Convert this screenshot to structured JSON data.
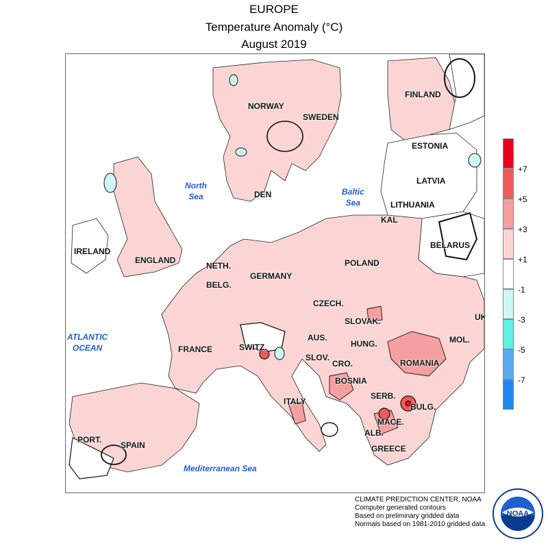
{
  "title": {
    "line1": "EUROPE",
    "line2": "Temperature Anomaly (°C)",
    "line3": "August 2019"
  },
  "countries": {
    "finland": "FINLAND",
    "norway": "NORWAY",
    "sweden": "SWEDEN",
    "estonia": "ESTONIA",
    "latvia": "LATVIA",
    "lithuania": "LITHUANIA",
    "kal": "KAL",
    "belarus": "BELARUS",
    "den": "DEN",
    "ireland": "IRELAND",
    "england": "ENGLAND",
    "neth": "NETH.",
    "belg": "BELG.",
    "germany": "GERMANY",
    "poland": "POLAND",
    "czech": "CZECH.",
    "slovak": "SLOVAK.",
    "aus": "AUS.",
    "switz": "SWITZ.",
    "france": "FRANCE",
    "hung": "HUNG.",
    "mol": "MOL.",
    "romania": "ROMANIA",
    "slov": "SLOV.",
    "cro": "CRO.",
    "bosnia": "BOSNIA",
    "serb": "SERB.",
    "bulg": "BULG.",
    "mace": "MACE.",
    "alb": "ALB.",
    "greece": "GREECE",
    "italy": "ITALY",
    "port": "PORT.",
    "spain": "SPAIN",
    "uk_edge": "UK"
  },
  "seas": {
    "north_1": "North",
    "north_2": "Sea",
    "baltic_1": "Baltic",
    "baltic_2": "Sea",
    "atlantic_1": "ATLANTIC",
    "atlantic_2": "OCEAN",
    "med": "Mediterranean Sea"
  },
  "legend": {
    "labels": [
      "+7",
      "+5",
      "+3",
      "+1",
      "-1",
      "-3",
      "-5",
      "-7"
    ],
    "bins": [
      {
        "range": "> +7",
        "color": "#e8001c"
      },
      {
        "range": "+5 to +7",
        "color": "#f05a5a"
      },
      {
        "range": "+3 to +5",
        "color": "#f5a0a0"
      },
      {
        "range": "+1 to +3",
        "color": "#fbd4d4"
      },
      {
        "range": "-1 to +1",
        "color": "#ffffff"
      },
      {
        "range": "-3 to -1",
        "color": "#cff7f3"
      },
      {
        "range": "-5 to -3",
        "color": "#5ff0e6"
      },
      {
        "range": "-7 to -5",
        "color": "#5aaaf0"
      },
      {
        "range": "< -7",
        "color": "#1e88f0"
      }
    ]
  },
  "credits": {
    "line1": "CLIMATE PREDICTION CENTER, NOAA",
    "line2": "Computer generated contours",
    "line3": "Based on preliminary gridded data",
    "line4": "Normals based on 1981-2010 gridded data"
  },
  "logo": {
    "text": "NOAA",
    "ring_top": "NATIONAL OCEANIC AND ATMOSPHERIC ADMINISTRATION",
    "ring_bottom": "U.S. DEPARTMENT OF COMMERCE"
  },
  "colors": {
    "anomaly_plus1": "#fbd4d4",
    "anomaly_plus3": "#f5a0a0",
    "anomaly_plus5": "#f05a5a",
    "anomaly_plus7": "#e8001c",
    "anomaly_minus1": "#cff7f3",
    "sea_label": "#1f5fd0"
  }
}
